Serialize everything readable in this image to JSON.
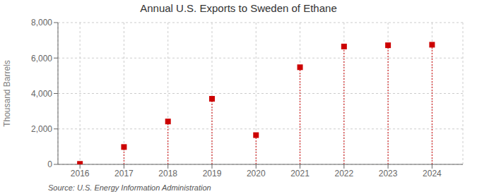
{
  "chart_data": {
    "type": "scatter",
    "title": "Annual U.S. Exports to Sweden of Ethane",
    "ylabel": "Thousand Barrels",
    "annotations": [
      "Source: U.S. Energy Information Administration"
    ],
    "x": [
      2016,
      2017,
      2018,
      2019,
      2020,
      2021,
      2022,
      2023,
      2024
    ],
    "values": [
      28,
      980,
      2420,
      3700,
      1650,
      5480,
      6650,
      6720,
      6750
    ],
    "color": "#cc0000",
    "marker": "square",
    "xlim": [
      2015.5,
      2024.7
    ],
    "xticks": [
      2016,
      2017,
      2018,
      2019,
      2020,
      2021,
      2022,
      2023,
      2024
    ],
    "ylim": [
      0,
      8000
    ],
    "yticks": [
      0,
      {
        "value": 2000,
        "label": "2,000"
      },
      {
        "value": 4000,
        "label": "4,000"
      },
      {
        "value": 6000,
        "label": "6,000"
      },
      {
        "value": 8000,
        "label": "8,000"
      }
    ],
    "grid": true
  }
}
